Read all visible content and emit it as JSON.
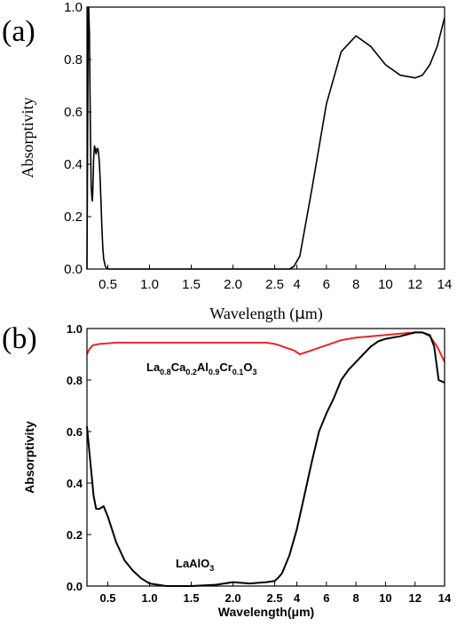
{
  "chart_data": [
    {
      "panel_label": "(a)",
      "type": "line",
      "xlabel_prefix": "Wavelength (",
      "xlabel_mu": "μ",
      "xlabel_suffix": "m)",
      "ylabel": "Absorptivity",
      "x_scale": "piecewise: 0.25-2.5 μm linear, 2.5-14 μm compressed",
      "ylim": [
        0.0,
        1.0
      ],
      "xticks": [
        "0.5",
        "1.0",
        "1.5",
        "2.0",
        "2.5",
        "4",
        "6",
        "8",
        "10",
        "12",
        "14"
      ],
      "yticks": [
        "0.0",
        "0.2",
        "0.4",
        "0.6",
        "0.8",
        "1.0"
      ],
      "grid": false,
      "series": [
        {
          "color": "#000000",
          "x": [
            0.25,
            0.26,
            0.265,
            0.27,
            0.28,
            0.29,
            0.3,
            0.31,
            0.315,
            0.32,
            0.33,
            0.34,
            0.36,
            0.37,
            0.38,
            0.39,
            0.4,
            0.41,
            0.42,
            0.43,
            0.44,
            0.45,
            0.47,
            0.5,
            0.55,
            1.0,
            2.0,
            2.5,
            3.5,
            3.8,
            4.2,
            5.0,
            6.0,
            7.0,
            8.0,
            9.0,
            10.0,
            11.0,
            12.0,
            12.5,
            13.0,
            13.5,
            14.0
          ],
          "y": [
            0.0,
            0.6,
            1.0,
            1.0,
            0.9,
            0.55,
            0.32,
            0.27,
            0.26,
            0.3,
            0.42,
            0.47,
            0.44,
            0.46,
            0.46,
            0.44,
            0.4,
            0.33,
            0.24,
            0.15,
            0.08,
            0.04,
            0.01,
            0.0,
            0.0,
            0.0,
            0.0,
            0.0,
            0.0,
            0.01,
            0.05,
            0.3,
            0.63,
            0.83,
            0.89,
            0.85,
            0.78,
            0.74,
            0.73,
            0.74,
            0.78,
            0.85,
            0.96
          ]
        }
      ]
    },
    {
      "panel_label": "(b)",
      "type": "line",
      "xlabel": "Wavelength(μm)",
      "ylabel": "Absorptivity",
      "x_scale": "piecewise: 0.25-2.5 μm linear, 2.5-14 μm compressed",
      "ylim": [
        0.0,
        1.0
      ],
      "xticks": [
        "0.5",
        "1.0",
        "1.5",
        "2.0",
        "2.5",
        "4",
        "6",
        "8",
        "10",
        "12",
        "14"
      ],
      "yticks": [
        "0.0",
        "0.2",
        "0.4",
        "0.6",
        "0.8",
        "1.0"
      ],
      "grid": false,
      "series": [
        {
          "label_parts": [
            {
              "t": "La",
              "sub": false
            },
            {
              "t": "0.8",
              "sub": true
            },
            {
              "t": "Ca",
              "sub": false
            },
            {
              "t": "0.2",
              "sub": true
            },
            {
              "t": "Al",
              "sub": false
            },
            {
              "t": "0.9",
              "sub": true
            },
            {
              "t": "Cr",
              "sub": false
            },
            {
              "t": "0.1",
              "sub": true
            },
            {
              "t": "O",
              "sub": false
            },
            {
              "t": "3",
              "sub": true
            }
          ],
          "color": "#e8262a",
          "x": [
            0.25,
            0.28,
            0.32,
            0.4,
            0.6,
            1.0,
            1.5,
            2.0,
            2.4,
            2.5,
            2.8,
            3.3,
            3.8,
            4.2,
            5.0,
            6.0,
            7.0,
            8.0,
            9.0,
            10.0,
            11.0,
            12.0,
            12.5,
            13.0,
            13.5,
            14.0
          ],
          "y": [
            0.9,
            0.92,
            0.935,
            0.94,
            0.945,
            0.945,
            0.945,
            0.945,
            0.945,
            0.94,
            0.935,
            0.925,
            0.915,
            0.9,
            0.915,
            0.935,
            0.955,
            0.965,
            0.97,
            0.975,
            0.98,
            0.985,
            0.985,
            0.97,
            0.93,
            0.87
          ]
        },
        {
          "label_parts": [
            {
              "t": "LaAlO",
              "sub": false
            },
            {
              "t": "3",
              "sub": true
            }
          ],
          "color": "#000000",
          "x": [
            0.25,
            0.27,
            0.3,
            0.33,
            0.36,
            0.4,
            0.45,
            0.5,
            0.6,
            0.7,
            0.8,
            0.9,
            1.0,
            1.2,
            1.5,
            1.8,
            2.0,
            2.2,
            2.4,
            2.5,
            2.7,
            3.0,
            3.5,
            4.0,
            4.5,
            5.0,
            5.5,
            6.0,
            6.5,
            7.0,
            7.5,
            8.0,
            8.5,
            9.0,
            9.5,
            10.0,
            11.0,
            12.0,
            12.5,
            13.0,
            13.3,
            13.6,
            14.0
          ],
          "y": [
            0.62,
            0.55,
            0.45,
            0.35,
            0.3,
            0.3,
            0.31,
            0.27,
            0.17,
            0.1,
            0.06,
            0.03,
            0.01,
            0.0,
            0.0,
            0.005,
            0.015,
            0.01,
            0.015,
            0.02,
            0.03,
            0.05,
            0.12,
            0.22,
            0.35,
            0.48,
            0.6,
            0.67,
            0.73,
            0.8,
            0.84,
            0.87,
            0.9,
            0.93,
            0.95,
            0.96,
            0.97,
            0.985,
            0.985,
            0.975,
            0.93,
            0.8,
            0.79
          ]
        }
      ]
    }
  ]
}
